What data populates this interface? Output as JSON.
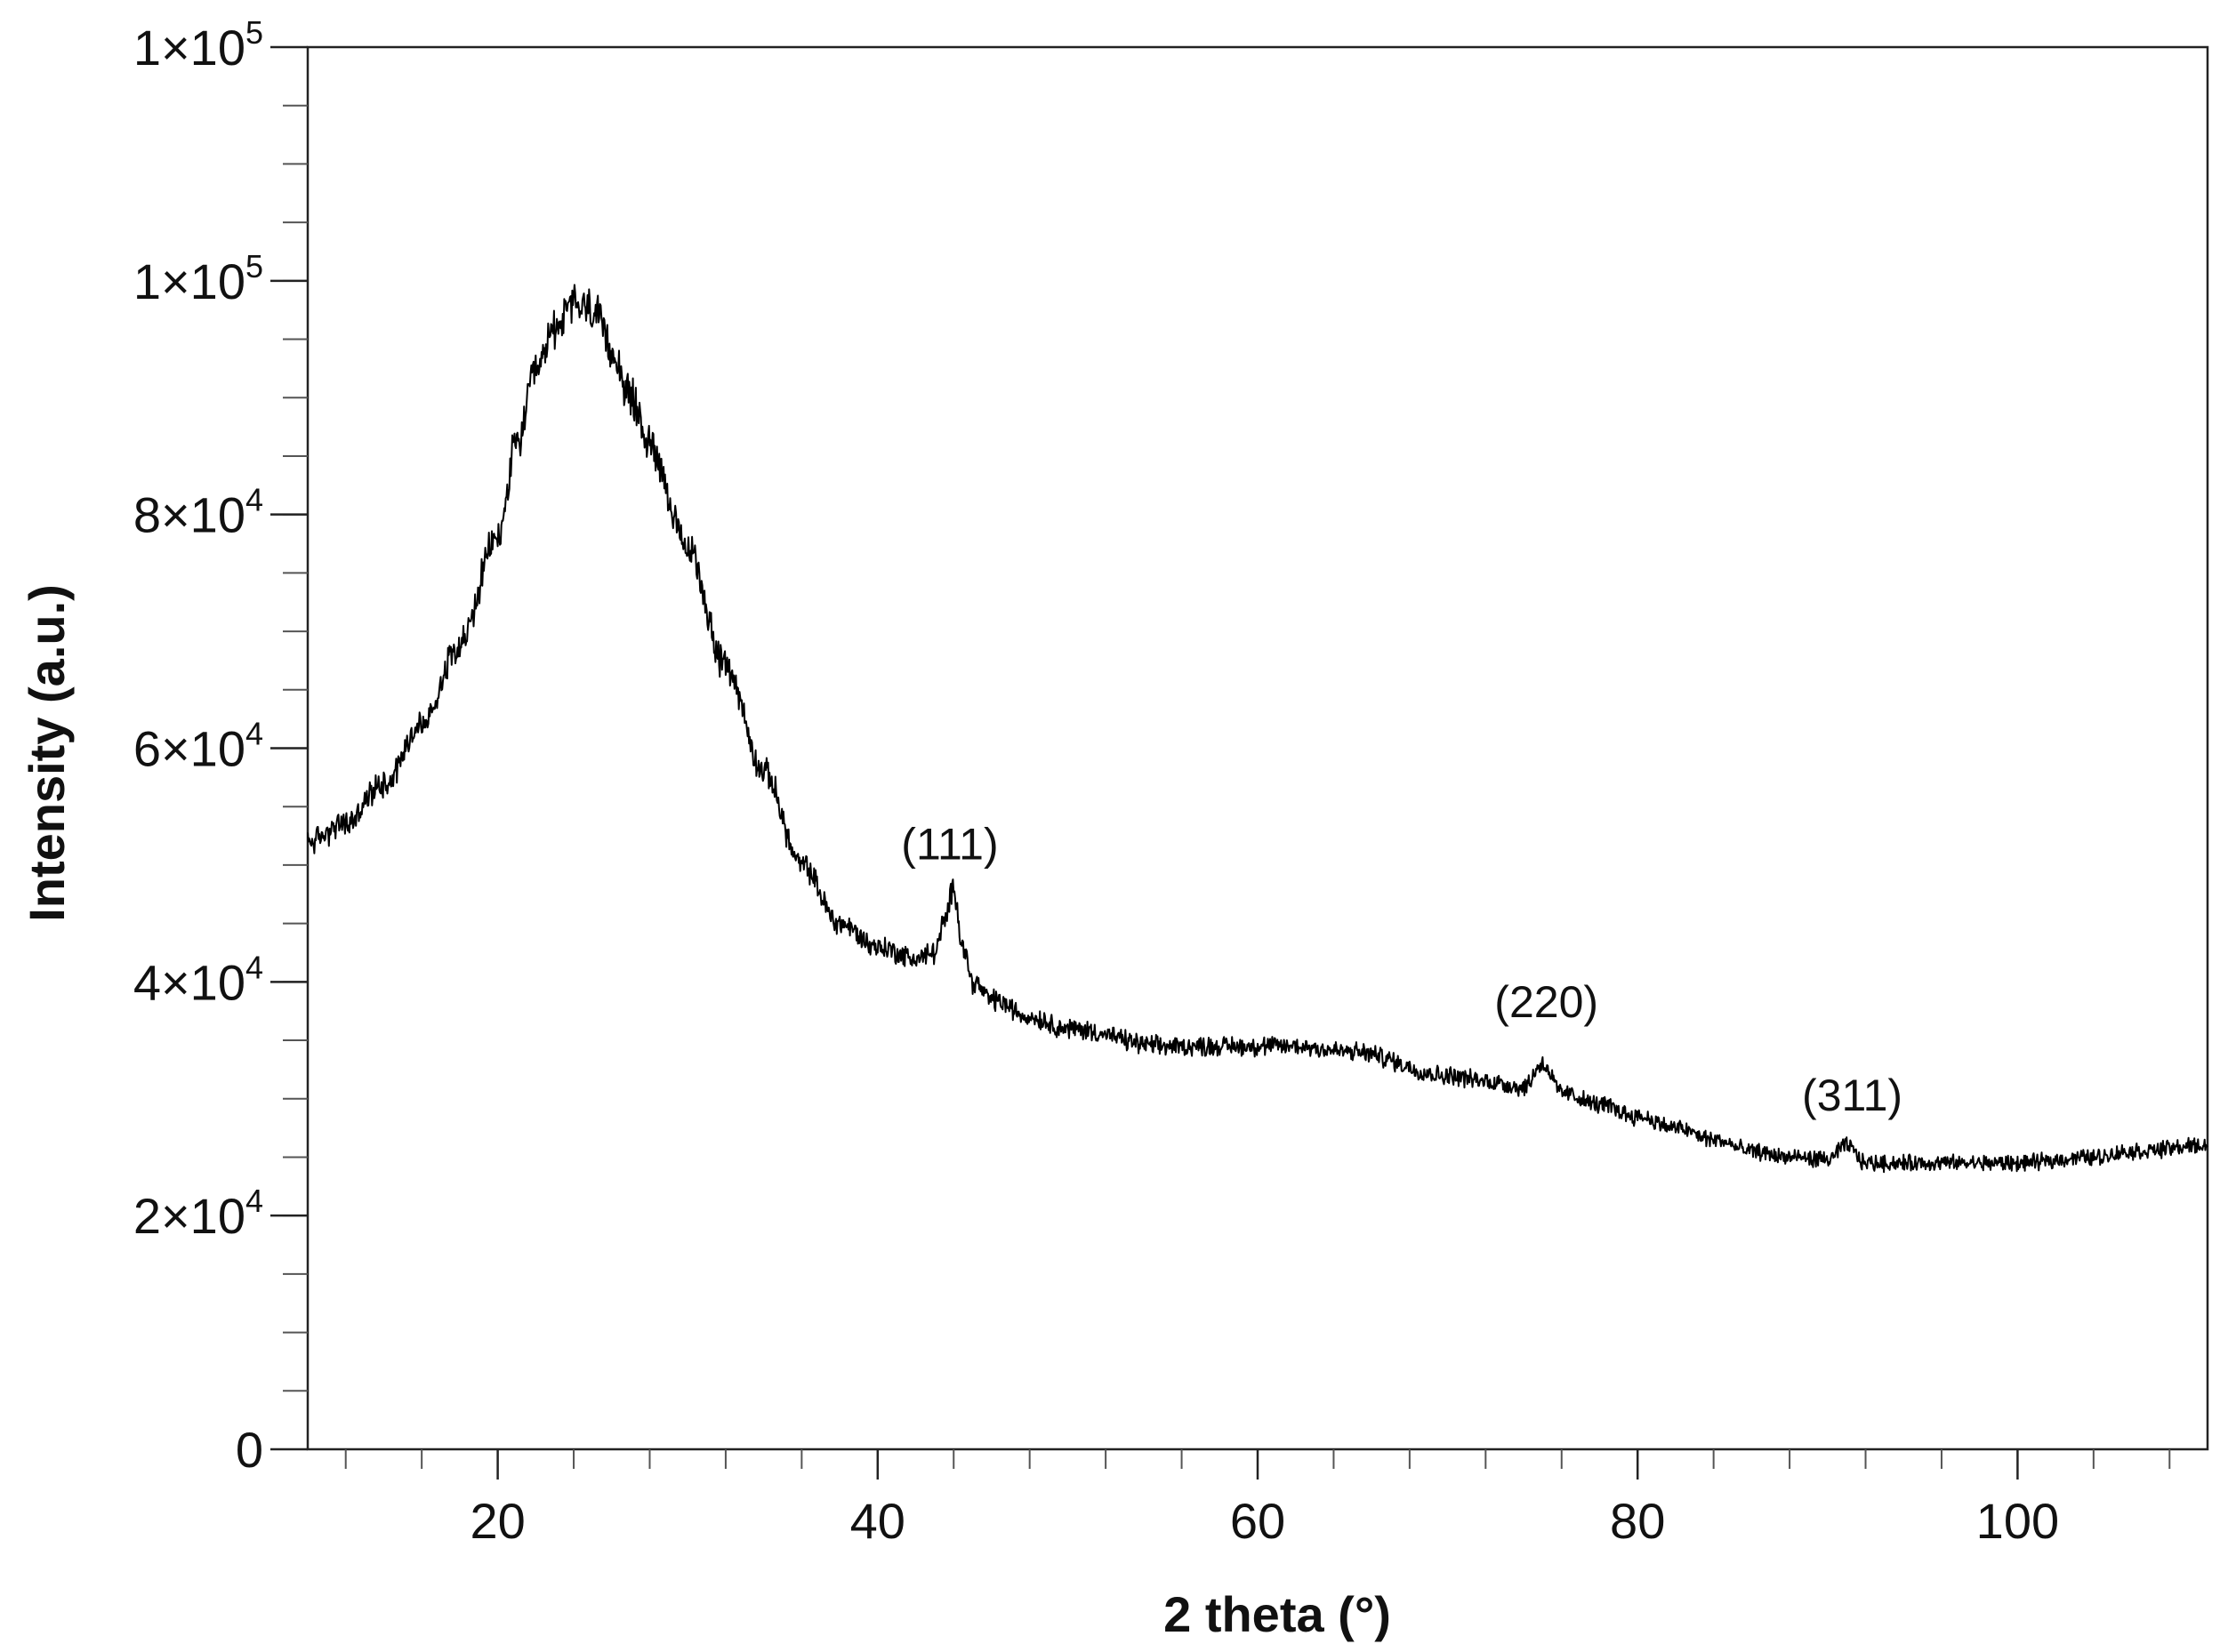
{
  "chart_data": {
    "type": "line",
    "title": "",
    "xlabel": "2 theta (°)",
    "ylabel": "Intensity (a.u.)",
    "xlim": [
      10,
      110
    ],
    "ylim": [
      0,
      120000
    ],
    "x_ticks": [
      {
        "value": 20,
        "label": "20"
      },
      {
        "value": 40,
        "label": "40"
      },
      {
        "value": 60,
        "label": "60"
      },
      {
        "value": 80,
        "label": "80"
      },
      {
        "value": 100,
        "label": "100"
      }
    ],
    "y_ticks": [
      {
        "value": 0,
        "label": "0",
        "exp": ""
      },
      {
        "value": 20000,
        "label": "2×10",
        "exp": "4"
      },
      {
        "value": 40000,
        "label": "4×10",
        "exp": "4"
      },
      {
        "value": 60000,
        "label": "6×10",
        "exp": "4"
      },
      {
        "value": 80000,
        "label": "8×10",
        "exp": "4"
      },
      {
        "value": 100000,
        "label": "1×10",
        "exp": "5"
      },
      {
        "value": 120000,
        "label": "1×10",
        "exp": "5"
      }
    ],
    "grid": false,
    "legend": "none",
    "series": [
      {
        "color": "#000000",
        "x": [
          10,
          12,
          14,
          16,
          18,
          20,
          21,
          22,
          23,
          24,
          25,
          26,
          27,
          28,
          30,
          32,
          34,
          36,
          38,
          40,
          42,
          43,
          43.5,
          44,
          44.5,
          45,
          46,
          48,
          50,
          55,
          60,
          62,
          65,
          70,
          72,
          74,
          75,
          76,
          78,
          80,
          82,
          84,
          86,
          88,
          90,
          91,
          92,
          94,
          96,
          100,
          104,
          106,
          110
        ],
        "y": [
          52000,
          53500,
          57000,
          62000,
          69000,
          78000,
          86000,
          92000,
          96000,
          98000,
          97500,
          94000,
          90000,
          86000,
          77000,
          67000,
          58000,
          50000,
          45000,
          43000,
          42000,
          42500,
          45000,
          48000,
          43000,
          40000,
          38500,
          37000,
          36000,
          34500,
          34500,
          34500,
          34000,
          32000,
          31500,
          31000,
          33000,
          30500,
          29500,
          28500,
          27500,
          26500,
          25500,
          25000,
          24800,
          26000,
          24500,
          24500,
          24500,
          24500,
          25000,
          25500,
          26000
        ]
      }
    ],
    "annotations": [
      {
        "text": "(111)",
        "x": 43.8,
        "y": 50500
      },
      {
        "text": "(220)",
        "x": 75.2,
        "y": 37000
      },
      {
        "text": "(311)",
        "x": 91.3,
        "y": 29000
      }
    ]
  }
}
